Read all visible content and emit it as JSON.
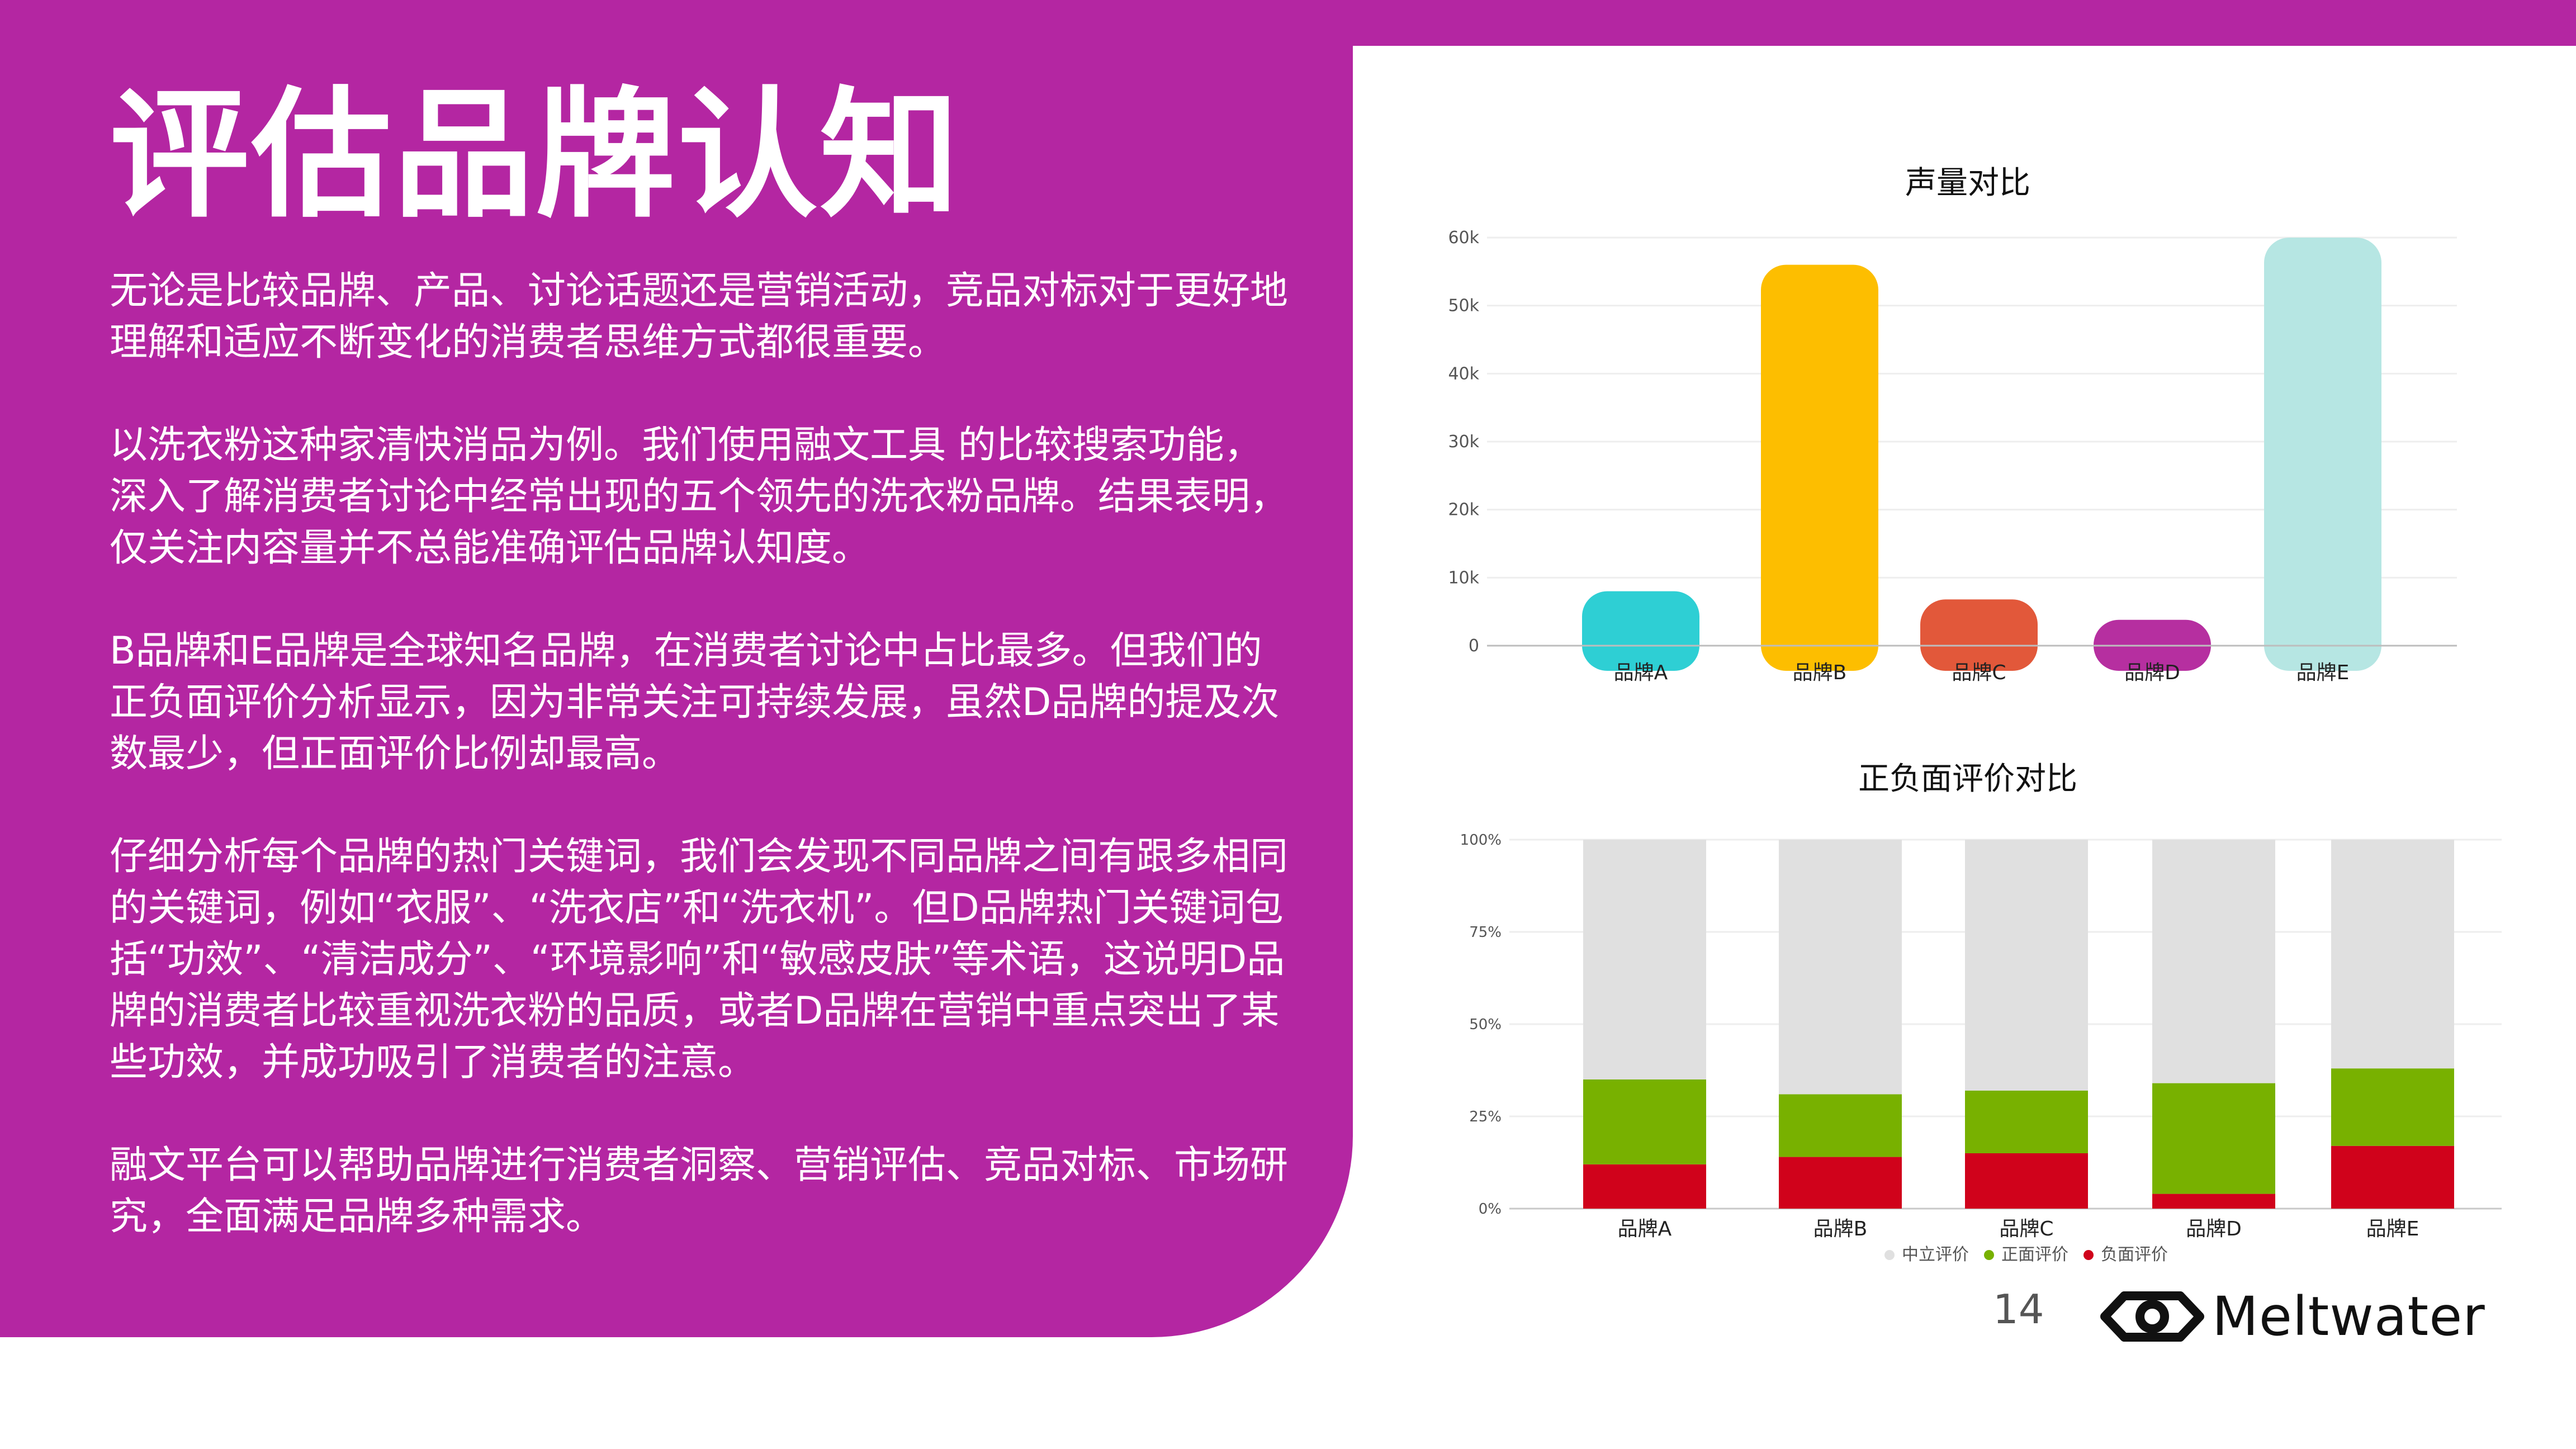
{
  "page": {
    "title": "评估品牌认知",
    "paragraphs": [
      "无论是比较品牌、产品、讨论话题还是营销活动，竞品对标对于更好地理解和适应不断变化的消费者思维方式都很重要。",
      "以洗衣粉这种家清快消品为例。我们使用融文工具 的比较搜索功能，深入了解消费者讨论中经常出现的五个领先的洗衣粉品牌。结果表明，仅关注内容量并不总能准确评估品牌认知度。",
      "B品牌和E品牌是全球知名品牌，在消费者讨论中占比最多。但我们的正负面评价分析显示，因为非常关注可持续发展，虽然D品牌的提及次数最少，但正面评价比例却最高。",
      "仔细分析每个品牌的热门关键词，我们会发现不同品牌之间有跟多相同的关键词，例如“衣服”、“洗衣店”和“洗衣机”。但D品牌热门关键词包括“功效”、“清洁成分”、“环境影响”和“敏感皮肤”等术语，这说明D品牌的消费者比较重视洗衣粉的品质，或者D品牌在营销中重点突出了某些功效，并成功吸引了消费者的注意。",
      "融文平台可以帮助品牌进行消费者洞察、营销评估、竞品对标、市场研究，全面满足品牌多种需求。"
    ],
    "page_number": "14",
    "logo_text": "Meltwater",
    "colors": {
      "panel": "#b426a2",
      "text_on_panel": "#ffffff"
    }
  },
  "chart_data": [
    {
      "type": "bar",
      "title": "声量对比",
      "categories": [
        "品牌A",
        "品牌B",
        "品牌C",
        "品牌D",
        "品牌E"
      ],
      "values": [
        8000,
        56000,
        6800,
        3800,
        60000
      ],
      "colors": [
        "#2ecfd4",
        "#fdbe00",
        "#e2583a",
        "#b62fa0",
        "#b6e6e3"
      ],
      "yticks": [
        "0",
        "10k",
        "20k",
        "30k",
        "40k",
        "50k",
        "60k"
      ],
      "ylim": [
        0,
        60000
      ],
      "grid": true
    },
    {
      "type": "bar",
      "stacked": "percent",
      "title": "正负面评价对比",
      "categories": [
        "品牌A",
        "品牌B",
        "品牌C",
        "品牌D",
        "品牌E"
      ],
      "yticks": [
        "0%",
        "25%",
        "50%",
        "75%",
        "100%"
      ],
      "ylim": [
        0,
        100
      ],
      "series": [
        {
          "name": "负面评价",
          "color": "#d0021b",
          "values": [
            12,
            14,
            15,
            4,
            17
          ]
        },
        {
          "name": "正面评价",
          "color": "#78b100",
          "values": [
            23,
            17,
            17,
            30,
            21
          ]
        },
        {
          "name": "中立评价",
          "color": "#e0e0e0",
          "values": [
            65,
            69,
            68,
            66,
            62
          ]
        }
      ],
      "legend": [
        {
          "name": "中立评价",
          "color": "#e0e0e0"
        },
        {
          "name": "正面评价",
          "color": "#78b100"
        },
        {
          "name": "负面评价",
          "color": "#d0021b"
        }
      ],
      "legend_position": "bottom",
      "grid": true
    }
  ]
}
